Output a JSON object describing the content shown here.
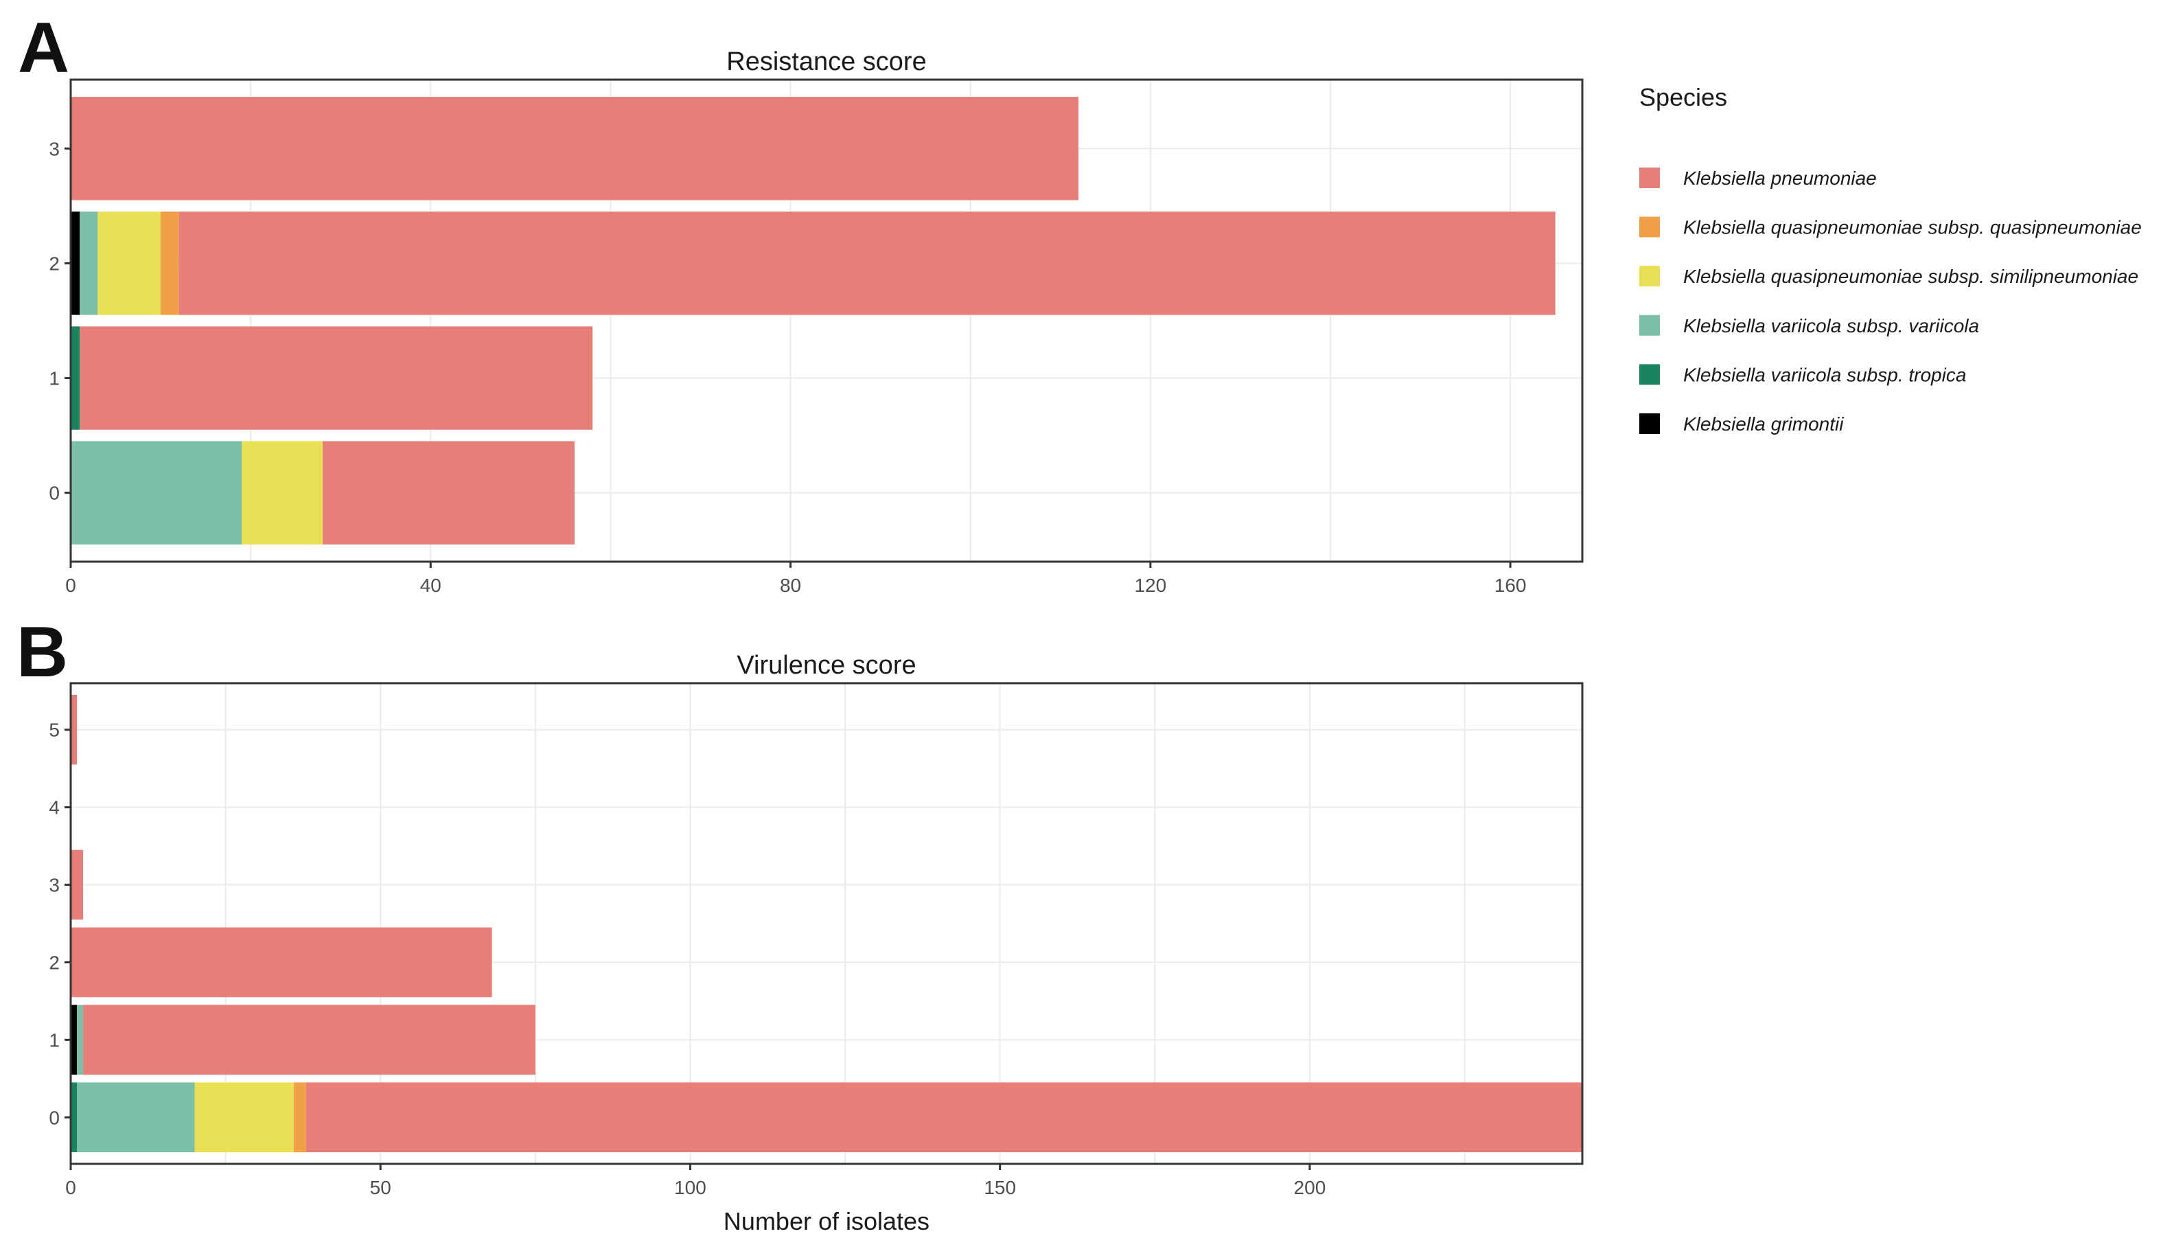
{
  "panels": {
    "A": "A",
    "B": "B"
  },
  "species": [
    {
      "name": "Klebsiella pneumoniae",
      "color": "#E57F77"
    },
    {
      "name": "Klebsiella quasipneumoniae subsp. quasipneumoniae",
      "color": "#F0A046"
    },
    {
      "name": "Klebsiella quasipneumoniae subsp. similipneumoniae",
      "color": "#E9DF55"
    },
    {
      "name": "Klebsiella variicola subsp. variicola",
      "color": "#7BBFAA"
    },
    {
      "name": "Klebsiella variicola subsp. tropica",
      "color": "#1A8462"
    },
    {
      "name": "Klebsiella grimontii",
      "color": "#000000"
    }
  ],
  "legend": {
    "title": "Species"
  },
  "chart_data": [
    {
      "type": "bar",
      "orientation": "horizontal",
      "stacked": true,
      "title": "Resistance score",
      "xlabel": "",
      "ylabel": "",
      "categories": [
        "0",
        "1",
        "2",
        "3"
      ],
      "xlim": [
        0,
        168
      ],
      "xticks": [
        0,
        40,
        80,
        120,
        160
      ],
      "stack_order": [
        "Klebsiella grimontii",
        "Klebsiella variicola subsp. tropica",
        "Klebsiella variicola subsp. variicola",
        "Klebsiella quasipneumoniae subsp. similipneumoniae",
        "Klebsiella quasipneumoniae subsp. quasipneumoniae",
        "Klebsiella pneumoniae"
      ],
      "series": [
        {
          "name": "Klebsiella pneumoniae",
          "values": [
            28,
            57,
            153,
            112
          ]
        },
        {
          "name": "Klebsiella quasipneumoniae subsp. quasipneumoniae",
          "values": [
            0,
            0,
            2,
            0
          ]
        },
        {
          "name": "Klebsiella quasipneumoniae subsp. similipneumoniae",
          "values": [
            9,
            0,
            7,
            0
          ]
        },
        {
          "name": "Klebsiella variicola subsp. variicola",
          "values": [
            19,
            0,
            2,
            0
          ]
        },
        {
          "name": "Klebsiella variicola subsp. tropica",
          "values": [
            0,
            1,
            0,
            0
          ]
        },
        {
          "name": "Klebsiella grimontii",
          "values": [
            0,
            0,
            1,
            0
          ]
        }
      ]
    },
    {
      "type": "bar",
      "orientation": "horizontal",
      "stacked": true,
      "title": "Virulence score",
      "xlabel": "Number of isolates",
      "ylabel": "",
      "categories": [
        "0",
        "1",
        "2",
        "3",
        "4",
        "5"
      ],
      "xlim": [
        0,
        244
      ],
      "xticks": [
        0,
        50,
        100,
        150,
        200
      ],
      "stack_order": [
        "Klebsiella grimontii",
        "Klebsiella variicola subsp. tropica",
        "Klebsiella variicola subsp. variicola",
        "Klebsiella quasipneumoniae subsp. similipneumoniae",
        "Klebsiella quasipneumoniae subsp. quasipneumoniae",
        "Klebsiella pneumoniae"
      ],
      "series": [
        {
          "name": "Klebsiella pneumoniae",
          "values": [
            206,
            73,
            68,
            2,
            0,
            1
          ]
        },
        {
          "name": "Klebsiella quasipneumoniae subsp. quasipneumoniae",
          "values": [
            2,
            0,
            0,
            0,
            0,
            0
          ]
        },
        {
          "name": "Klebsiella quasipneumoniae subsp. similipneumoniae",
          "values": [
            16,
            0,
            0,
            0,
            0,
            0
          ]
        },
        {
          "name": "Klebsiella variicola subsp. variicola",
          "values": [
            19,
            1,
            0,
            0,
            0,
            0
          ]
        },
        {
          "name": "Klebsiella variicola subsp. tropica",
          "values": [
            1,
            0,
            0,
            0,
            0,
            0
          ]
        },
        {
          "name": "Klebsiella grimontii",
          "values": [
            0,
            1,
            0,
            0,
            0,
            0
          ]
        }
      ]
    }
  ]
}
